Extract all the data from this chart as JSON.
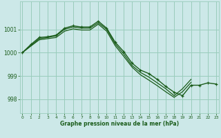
{
  "xlabel": "Graphe pression niveau de la mer (hPa)",
  "background_color": "#cce8e8",
  "grid_color": "#99ccbb",
  "line_color": "#1a5c1a",
  "ylim": [
    997.4,
    1002.2
  ],
  "yticks": [
    998,
    999,
    1000,
    1001
  ],
  "xlim": [
    -0.3,
    23.3
  ],
  "xticks": [
    0,
    1,
    2,
    3,
    4,
    5,
    6,
    7,
    8,
    9,
    10,
    11,
    12,
    13,
    14,
    15,
    16,
    17,
    18,
    19,
    20,
    21,
    22,
    23
  ],
  "series": [
    {
      "x": [
        0,
        1,
        2,
        3,
        4,
        5,
        6,
        7,
        8,
        9,
        10,
        11,
        12,
        13,
        14,
        15,
        16,
        17,
        18,
        19,
        20,
        21,
        22,
        23
      ],
      "y": [
        1000.0,
        1000.35,
        1000.65,
        1000.68,
        1000.75,
        1001.05,
        1001.15,
        1001.1,
        1001.1,
        1001.35,
        1001.05,
        1000.45,
        1000.05,
        999.55,
        999.25,
        999.1,
        998.85,
        998.55,
        998.3,
        998.15,
        998.6,
        998.6,
        998.7,
        998.65
      ],
      "markers": true,
      "lw": 1.0
    },
    {
      "x": [
        0,
        1,
        2,
        3,
        4,
        5,
        6,
        7,
        8,
        9,
        10,
        11,
        12,
        13,
        14,
        15,
        16,
        17,
        18,
        19,
        20
      ],
      "y": [
        1000.0,
        1000.3,
        1000.6,
        1000.65,
        1000.72,
        1001.0,
        1001.1,
        1001.05,
        1001.05,
        1001.28,
        1001.0,
        1000.38,
        999.95,
        999.45,
        999.15,
        998.95,
        998.7,
        998.45,
        998.15,
        998.45,
        998.85
      ],
      "markers": false,
      "lw": 0.9
    },
    {
      "x": [
        0,
        1,
        2,
        3,
        4,
        5,
        6,
        7,
        8,
        9,
        10,
        11,
        12,
        13,
        14,
        15,
        16,
        17,
        18,
        19,
        20
      ],
      "y": [
        1000.0,
        1000.28,
        1000.55,
        1000.6,
        1000.65,
        1000.92,
        1001.02,
        1000.97,
        1000.97,
        1001.22,
        1000.92,
        1000.3,
        999.85,
        999.38,
        999.05,
        998.82,
        998.58,
        998.32,
        998.08,
        998.32,
        998.72
      ],
      "markers": false,
      "lw": 0.9
    }
  ]
}
